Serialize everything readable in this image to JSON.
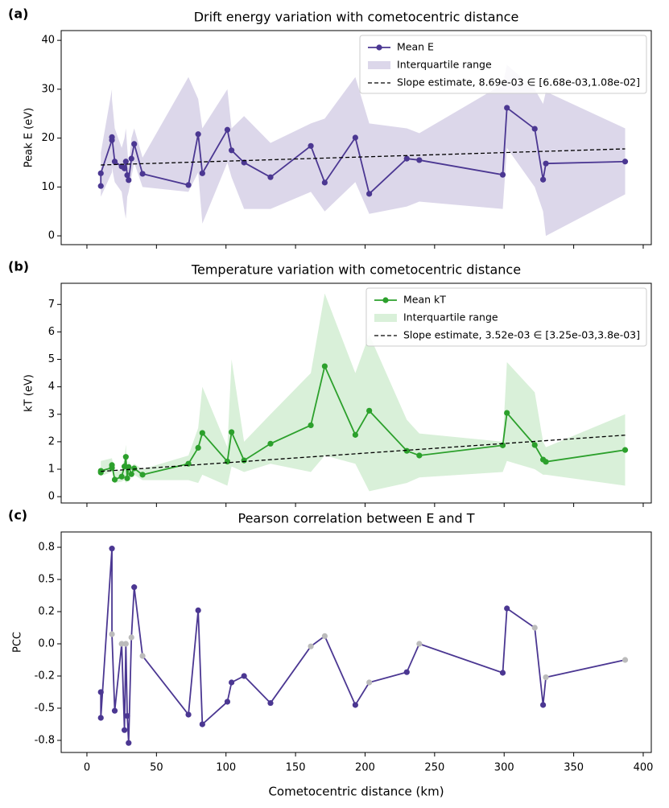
{
  "chart_data": [
    {
      "type": "line",
      "panel_label": "(a)",
      "title": "Drift energy variation with cometocentric distance",
      "ylabel": "Peak E (eV)",
      "x": [
        10,
        10,
        18,
        18,
        20,
        25,
        27,
        28,
        29,
        30,
        32,
        34,
        40,
        73,
        80,
        83,
        101,
        104,
        113,
        132,
        161,
        171,
        193,
        203,
        230,
        239,
        299,
        302,
        322,
        328,
        330,
        387
      ],
      "xlim": [
        -18.5,
        405.8
      ],
      "xticks": [
        0,
        50,
        100,
        150,
        200,
        250,
        300,
        350,
        400
      ],
      "show_xtick_labels": false,
      "ylim": [
        -1.8,
        42
      ],
      "yticks": [
        0,
        10,
        20,
        30,
        40
      ],
      "series": [
        {
          "name": "Mean E",
          "color": "#4b3792",
          "values": [
            10.2,
            12.8,
            19.6,
            20.2,
            15.2,
            14.2,
            13.8,
            15.2,
            12.4,
            11.4,
            15.8,
            18.8,
            12.7,
            10.4,
            20.8,
            12.8,
            21.7,
            17.5,
            15,
            12,
            18.4,
            10.9,
            20.1,
            8.6,
            15.8,
            15.5,
            12.5,
            26.2,
            21.9,
            11.5,
            14.8,
            15.2
          ]
        }
      ],
      "band": {
        "name": "Interquartile range",
        "color": "#dcd7ea",
        "low": [
          6.5,
          8,
          13,
          14,
          11,
          9,
          5,
          3.5,
          8,
          9,
          12,
          15,
          10,
          9,
          13,
          2.5,
          15,
          12,
          5.5,
          5.5,
          9,
          5,
          11,
          4.5,
          6,
          7,
          5.5,
          18,
          10,
          5,
          0,
          8.5
        ],
        "high": [
          16,
          17,
          30,
          28,
          22,
          18,
          20,
          22,
          18,
          14,
          20,
          22,
          16,
          32.5,
          28,
          22,
          30,
          22,
          24.5,
          19,
          23,
          24,
          32.5,
          23,
          22,
          21,
          31,
          35,
          30,
          27,
          29.5,
          22
        ]
      },
      "trend": {
        "name": "Slope estimate, 8.69e-03 ∈ [6.68e-03,1.08e-02]",
        "color": "#000000",
        "x": [
          10,
          387
        ],
        "y": [
          14.5,
          17.8
        ]
      },
      "legend": "upper right"
    },
    {
      "type": "line",
      "panel_label": "(b)",
      "title": "Temperature variation with cometocentric distance",
      "ylabel": "kT (eV)",
      "x": [
        10,
        10,
        18,
        18,
        20,
        25,
        27,
        28,
        29,
        30,
        32,
        34,
        40,
        73,
        80,
        83,
        101,
        104,
        113,
        132,
        161,
        171,
        193,
        203,
        230,
        239,
        299,
        302,
        322,
        328,
        330,
        387
      ],
      "xlim": [
        -18.5,
        405.8
      ],
      "xticks": [
        0,
        50,
        100,
        150,
        200,
        250,
        300,
        350,
        400
      ],
      "show_xtick_labels": false,
      "ylim": [
        -0.23,
        7.77
      ],
      "yticks": [
        0,
        1,
        2,
        3,
        4,
        5,
        6,
        7
      ],
      "series": [
        {
          "name": "Mean kT",
          "color": "#2ca02c",
          "values": [
            0.88,
            0.94,
            1.05,
            1.15,
            0.62,
            0.73,
            1.1,
            1.45,
            0.67,
            1.08,
            0.82,
            1.03,
            0.8,
            1.2,
            1.78,
            2.32,
            1.28,
            2.35,
            1.32,
            1.93,
            2.6,
            4.75,
            2.25,
            3.13,
            1.67,
            1.5,
            1.87,
            3.05,
            1.88,
            1.35,
            1.27,
            1.7
          ]
        }
      ],
      "band": {
        "name": "Interquartile range",
        "color": "#d9f0d9",
        "low": [
          0.7,
          0.75,
          0.9,
          0.95,
          0.5,
          0.55,
          0.6,
          0.5,
          0.55,
          0.8,
          0.7,
          0.8,
          0.6,
          0.6,
          0.5,
          0.8,
          0.4,
          1.1,
          0.9,
          1.2,
          0.9,
          1.5,
          1.2,
          0.2,
          0.5,
          0.7,
          0.9,
          1.3,
          1.0,
          0.8,
          0.8,
          0.4
        ],
        "high": [
          1.2,
          1.3,
          1.4,
          1.4,
          0.9,
          1.0,
          1.4,
          1.9,
          1.0,
          1.3,
          1.1,
          1.2,
          1.0,
          1.5,
          2.5,
          4.0,
          1.8,
          5.0,
          2.0,
          3.0,
          4.5,
          7.4,
          4.5,
          5.9,
          2.8,
          2.3,
          2.0,
          4.9,
          3.8,
          2.0,
          1.8,
          3.0
        ]
      },
      "trend": {
        "name": "Slope estimate, 3.52e-03 ∈ [3.25e-03,3.8e-03]",
        "color": "#000000",
        "x": [
          10,
          387
        ],
        "y": [
          0.92,
          2.24
        ]
      },
      "legend": "upper right"
    },
    {
      "type": "scatter-line",
      "panel_label": "(c)",
      "title": "Pearson correlation between E and T",
      "ylabel": "PCC",
      "xlabel": "Cometocentric distance (km)",
      "x": [
        10,
        10,
        18,
        18,
        20,
        25,
        27,
        28,
        29,
        30,
        32,
        34,
        40,
        73,
        80,
        83,
        101,
        104,
        113,
        132,
        161,
        171,
        193,
        203,
        230,
        239,
        299,
        302,
        322,
        328,
        330,
        387
      ],
      "xlim": [
        -18.5,
        405.8
      ],
      "xticks": [
        0,
        50,
        100,
        150,
        200,
        250,
        300,
        350,
        400
      ],
      "show_xtick_labels": true,
      "ylim": [
        -0.844,
        0.869
      ],
      "yticks": [
        {
          "value": 0.75,
          "label": "0.8"
        },
        0.5,
        {
          "value": 0.25,
          "label": "0.2"
        },
        {
          "value": 0,
          "label": "0.0"
        },
        {
          "value": -0.25,
          "label": "-0.2"
        },
        -0.5,
        {
          "value": -0.75,
          "label": "-0.8"
        }
      ],
      "series": [
        {
          "color": "#4b3792",
          "values": [
            -0.375,
            -0.575,
            0.74,
            0.075,
            -0.52,
            0,
            -0.67,
            0,
            -0.56,
            -0.77,
            0.05,
            0.44,
            -0.094,
            -0.55,
            0.26,
            -0.625,
            -0.45,
            -0.3,
            -0.25,
            -0.46,
            -0.02,
            0.06,
            -0.475,
            -0.3,
            -0.22,
            0,
            -0.225,
            0.275,
            0.125,
            -0.475,
            -0.26,
            -0.125
          ],
          "point_colors": [
            "#4b3792",
            "#4b3792",
            "#4b3792",
            "#bbbbbb",
            "#4b3792",
            "#bbbbbb",
            "#4b3792",
            "#bbbbbb",
            "#4b3792",
            "#4b3792",
            "#bbbbbb",
            "#4b3792",
            "#bbbbbb",
            "#4b3792",
            "#4b3792",
            "#4b3792",
            "#4b3792",
            "#4b3792",
            "#4b3792",
            "#4b3792",
            "#bbbbbb",
            "#bbbbbb",
            "#4b3792",
            "#bbbbbb",
            "#4b3792",
            "#bbbbbb",
            "#4b3792",
            "#4b3792",
            "#bbbbbb",
            "#4b3792",
            "#bbbbbb",
            "#bbbbbb"
          ]
        }
      ]
    }
  ]
}
